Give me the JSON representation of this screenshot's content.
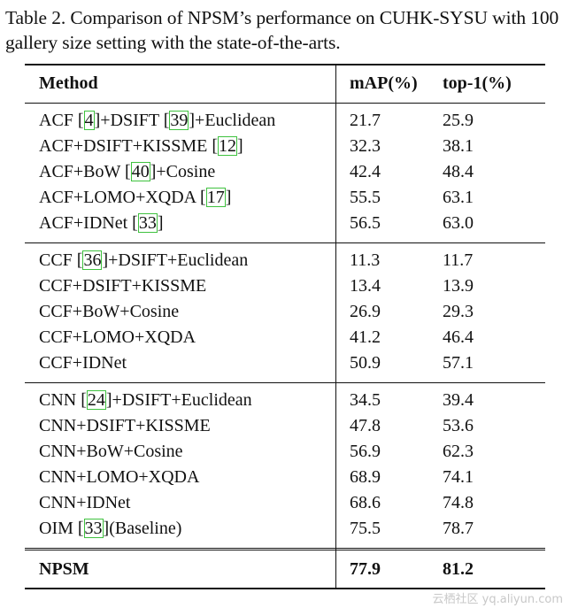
{
  "caption": "Table 2. Comparison of NPSM’s performance on CUHK-SYSU with 100 gallery size setting with the state-of-the-arts.",
  "headers": {
    "method": "Method",
    "map": "mAP(%)",
    "top1": "top-1(%)"
  },
  "groups": [
    [
      {
        "method": [
          {
            "t": "ACF "
          },
          {
            "t": "[",
            "s": 1
          },
          {
            "t": "4",
            "r": 1
          },
          {
            "t": "]+DSIFT ["
          },
          {
            "t": "39",
            "r": 1
          },
          {
            "t": "]+Euclidean"
          }
        ],
        "map": "21.7",
        "top1": "25.9"
      },
      {
        "method": [
          {
            "t": "ACF+DSIFT+KISSME ["
          },
          {
            "t": "12",
            "r": 1
          },
          {
            "t": "]"
          }
        ],
        "map": "32.3",
        "top1": "38.1"
      },
      {
        "method": [
          {
            "t": "ACF+BoW ["
          },
          {
            "t": "40",
            "r": 1
          },
          {
            "t": "]+Cosine"
          }
        ],
        "map": "42.4",
        "top1": "48.4"
      },
      {
        "method": [
          {
            "t": "ACF+LOMO+XQDA ["
          },
          {
            "t": "17",
            "r": 1
          },
          {
            "t": "]"
          }
        ],
        "map": "55.5",
        "top1": "63.1"
      },
      {
        "method": [
          {
            "t": "ACF+IDNet ["
          },
          {
            "t": "33",
            "r": 1
          },
          {
            "t": "]"
          }
        ],
        "map": "56.5",
        "top1": "63.0"
      }
    ],
    [
      {
        "method": [
          {
            "t": "CCF ["
          },
          {
            "t": "36",
            "r": 1
          },
          {
            "t": "]+DSIFT+Euclidean"
          }
        ],
        "map": "11.3",
        "top1": "11.7"
      },
      {
        "method": [
          {
            "t": "CCF+DSIFT+KISSME"
          }
        ],
        "map": "13.4",
        "top1": "13.9"
      },
      {
        "method": [
          {
            "t": "CCF+BoW+Cosine"
          }
        ],
        "map": "26.9",
        "top1": "29.3"
      },
      {
        "method": [
          {
            "t": "CCF+LOMO+XQDA"
          }
        ],
        "map": "41.2",
        "top1": "46.4"
      },
      {
        "method": [
          {
            "t": "CCF+IDNet"
          }
        ],
        "map": "50.9",
        "top1": "57.1"
      }
    ],
    [
      {
        "method": [
          {
            "t": "CNN ["
          },
          {
            "t": "24",
            "r": 1
          },
          {
            "t": "]+DSIFT+Euclidean"
          }
        ],
        "map": "34.5",
        "top1": "39.4"
      },
      {
        "method": [
          {
            "t": "CNN+DSIFT+KISSME"
          }
        ],
        "map": "47.8",
        "top1": "53.6"
      },
      {
        "method": [
          {
            "t": "CNN+BoW+Cosine"
          }
        ],
        "map": "56.9",
        "top1": "62.3"
      },
      {
        "method": [
          {
            "t": "CNN+LOMO+XQDA"
          }
        ],
        "map": "68.9",
        "top1": "74.1"
      },
      {
        "method": [
          {
            "t": "CNN+IDNet"
          }
        ],
        "map": "68.6",
        "top1": "74.8"
      },
      {
        "method": [
          {
            "t": "OIM ["
          },
          {
            "t": "33",
            "r": 1
          },
          {
            "t": "](Baseline)"
          }
        ],
        "map": "75.5",
        "top1": "78.7"
      }
    ]
  ],
  "final": {
    "method": "NPSM",
    "map": "77.9",
    "top1": "81.2"
  },
  "watermark": "云栖社区 yq.aliyun.com",
  "colors": {
    "ref_box": "#3fc23f",
    "text": "#111111"
  }
}
